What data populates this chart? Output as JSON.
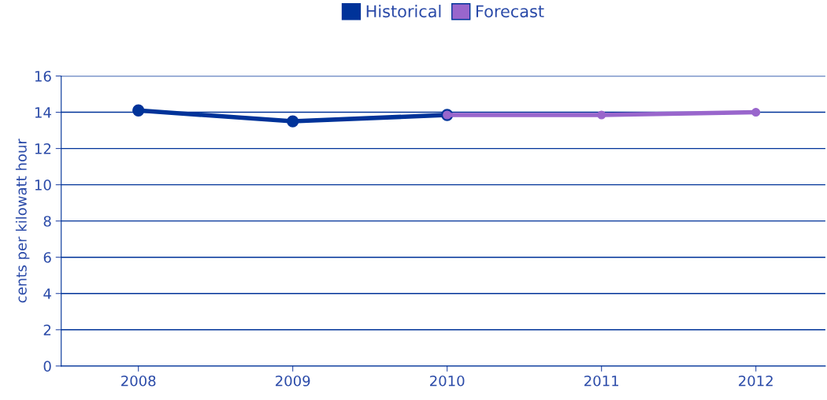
{
  "chart_data": {
    "type": "line",
    "ylabel": "cents per kilowatt hour",
    "xlim": [
      2007.5,
      2012.45
    ],
    "xticks": [
      2008,
      2009,
      2010,
      2011,
      2012
    ],
    "ylim": [
      0,
      16
    ],
    "yticks": [
      0,
      2,
      4,
      6,
      8,
      10,
      12,
      14,
      16
    ],
    "series": [
      {
        "name": "Historical",
        "color": "#003399",
        "x": [
          2008,
          2009,
          2010
        ],
        "values": [
          14.1,
          13.5,
          13.85
        ]
      },
      {
        "name": "Forecast",
        "color": "#9966cc",
        "x": [
          2010,
          2011,
          2012
        ],
        "values": [
          13.85,
          13.85,
          14.0
        ]
      }
    ],
    "grid": "y",
    "legend": "top",
    "marker": "circle",
    "line_style": "solid"
  }
}
